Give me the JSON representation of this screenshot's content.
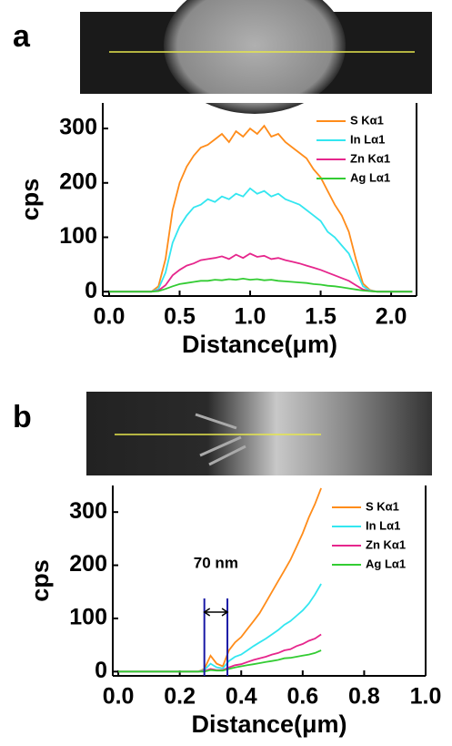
{
  "chart_data": [
    {
      "type": "line",
      "panel_label": "a",
      "x_label": "Distance(μm)",
      "y_label": "cps",
      "x": [
        0,
        0.05,
        0.1,
        0.15,
        0.2,
        0.25,
        0.3,
        0.35,
        0.4,
        0.45,
        0.5,
        0.55,
        0.6,
        0.65,
        0.7,
        0.75,
        0.8,
        0.85,
        0.9,
        0.95,
        1.0,
        1.05,
        1.1,
        1.15,
        1.2,
        1.25,
        1.3,
        1.35,
        1.4,
        1.45,
        1.5,
        1.55,
        1.6,
        1.65,
        1.7,
        1.75,
        1.8,
        1.85,
        1.9,
        1.95,
        2.0,
        2.05,
        2.1,
        2.15
      ],
      "series": [
        {
          "name": "S Kα1",
          "color": "#ff8c1a",
          "values": [
            0,
            0,
            0,
            0,
            0,
            0,
            0,
            10,
            60,
            150,
            200,
            230,
            250,
            265,
            270,
            280,
            290,
            275,
            295,
            285,
            300,
            290,
            305,
            285,
            290,
            275,
            265,
            255,
            245,
            225,
            210,
            185,
            160,
            140,
            110,
            60,
            15,
            3,
            0,
            0,
            0,
            0,
            0,
            0
          ]
        },
        {
          "name": "In Lα1",
          "color": "#33e6f0",
          "values": [
            0,
            0,
            0,
            0,
            0,
            0,
            0,
            5,
            35,
            90,
            120,
            140,
            155,
            160,
            170,
            165,
            175,
            170,
            180,
            175,
            190,
            180,
            185,
            175,
            180,
            170,
            165,
            160,
            150,
            140,
            130,
            110,
            100,
            85,
            70,
            40,
            10,
            2,
            0,
            0,
            0,
            0,
            0,
            0
          ]
        },
        {
          "name": "Zn Kα1",
          "color": "#e6268c",
          "values": [
            0,
            0,
            0,
            0,
            0,
            0,
            0,
            2,
            12,
            30,
            40,
            48,
            52,
            58,
            60,
            62,
            65,
            60,
            68,
            62,
            70,
            64,
            66,
            60,
            62,
            58,
            55,
            52,
            48,
            44,
            40,
            35,
            30,
            25,
            20,
            12,
            4,
            1,
            0,
            0,
            0,
            0,
            0,
            0
          ]
        },
        {
          "name": "Ag Lα1",
          "color": "#33cc33",
          "values": [
            0,
            0,
            0,
            0,
            0,
            0,
            0,
            1,
            5,
            10,
            14,
            16,
            18,
            20,
            20,
            22,
            21,
            23,
            22,
            24,
            22,
            23,
            21,
            22,
            20,
            19,
            18,
            17,
            16,
            14,
            13,
            11,
            10,
            8,
            6,
            4,
            2,
            1,
            0,
            0,
            0,
            0,
            0,
            0
          ]
        }
      ],
      "xlim": [
        -0.045,
        2.18
      ],
      "xticks": [
        {
          "value": 0,
          "label": "0.0"
        },
        0.5,
        {
          "value": 1,
          "label": "1.0"
        },
        1.5,
        {
          "value": 2,
          "label": "2.0"
        }
      ],
      "ylim": [
        -8,
        347
      ],
      "yticks": [
        0,
        100,
        200,
        300
      ],
      "legend": "upper right"
    },
    {
      "type": "line",
      "panel_label": "b",
      "x_label": "Distance(μm)",
      "y_label": "cps",
      "x": [
        0,
        0.02,
        0.04,
        0.06,
        0.08,
        0.1,
        0.12,
        0.14,
        0.16,
        0.18,
        0.2,
        0.22,
        0.24,
        0.26,
        0.28,
        0.3,
        0.32,
        0.34,
        0.36,
        0.38,
        0.4,
        0.42,
        0.44,
        0.46,
        0.48,
        0.5,
        0.52,
        0.54,
        0.56,
        0.58,
        0.6,
        0.62,
        0.64,
        0.66
      ],
      "series": [
        {
          "name": "S Kα1",
          "color": "#ff8c1a",
          "values": [
            0,
            0,
            0,
            0,
            0,
            0,
            0,
            0,
            0,
            0,
            0,
            0,
            0,
            0,
            5,
            30,
            15,
            10,
            40,
            55,
            65,
            80,
            95,
            110,
            130,
            150,
            170,
            190,
            210,
            235,
            260,
            290,
            315,
            345
          ]
        },
        {
          "name": "In Lα1",
          "color": "#33e6f0",
          "values": [
            0,
            0,
            0,
            0,
            0,
            0,
            0,
            0,
            0,
            0,
            0,
            0,
            0,
            0,
            3,
            15,
            8,
            6,
            20,
            28,
            32,
            40,
            48,
            55,
            62,
            70,
            78,
            88,
            95,
            105,
            115,
            128,
            145,
            165
          ]
        },
        {
          "name": "Zn Kα1",
          "color": "#e6268c",
          "values": [
            0,
            0,
            0,
            0,
            0,
            0,
            0,
            0,
            0,
            0,
            0,
            0,
            0,
            0,
            1,
            5,
            3,
            3,
            8,
            12,
            14,
            18,
            22,
            25,
            28,
            32,
            35,
            40,
            42,
            48,
            52,
            58,
            62,
            70
          ]
        },
        {
          "name": "Ag Lα1",
          "color": "#33cc33",
          "values": [
            0,
            0,
            0,
            0,
            0,
            0,
            0,
            0,
            0,
            0,
            0,
            0,
            0,
            0,
            0,
            3,
            2,
            2,
            5,
            8,
            10,
            12,
            14,
            16,
            18,
            20,
            22,
            25,
            26,
            28,
            30,
            32,
            35,
            40
          ]
        }
      ],
      "xlim": [
        -0.018,
        1.0
      ],
      "xticks": [
        {
          "value": 0,
          "label": "0.0"
        },
        0.2,
        0.4,
        0.6,
        0.8,
        {
          "value": 1,
          "label": "1.0"
        }
      ],
      "ylim": [
        -8,
        350
      ],
      "yticks": [
        0,
        100,
        200,
        300
      ],
      "legend": "upper right",
      "annotation": {
        "text": "70 nm",
        "x": [
          0.28,
          0.355
        ]
      }
    }
  ]
}
